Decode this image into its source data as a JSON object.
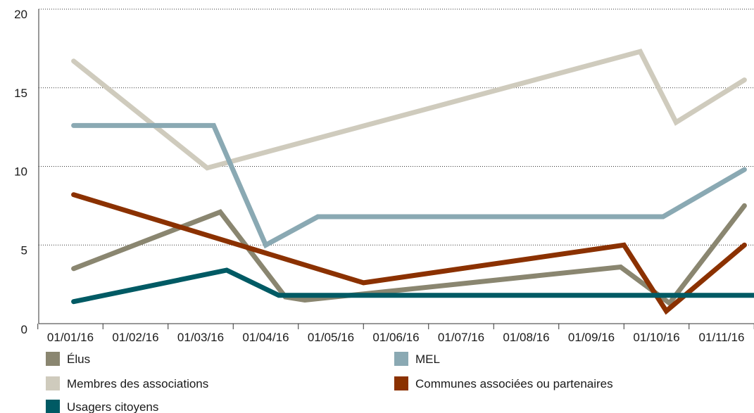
{
  "chart_data": {
    "type": "line",
    "categories": [
      "01/01/16",
      "01/02/16",
      "01/03/16",
      "01/04/16",
      "01/05/16",
      "01/06/16",
      "01/07/16",
      "01/08/16",
      "01/09/16",
      "01/10/16",
      "01/11/16"
    ],
    "yticks": [
      "0",
      "5",
      "10",
      "15",
      "20"
    ],
    "ylim": [
      0,
      20
    ],
    "grid": true,
    "legend_position": "bottom",
    "series": [
      {
        "name": "Élus",
        "color": "#8a8670",
        "points": [
          [
            0.05,
            3.5
          ],
          [
            2.3,
            7.1
          ],
          [
            3.3,
            1.7
          ],
          [
            3.6,
            1.5
          ],
          [
            8.45,
            3.6
          ],
          [
            9.2,
            1.3
          ],
          [
            10.35,
            7.5
          ]
        ]
      },
      {
        "name": "MEL",
        "color": "#8aa9b3",
        "points": [
          [
            0.05,
            12.6
          ],
          [
            2.2,
            12.6
          ],
          [
            3.0,
            5.0
          ],
          [
            3.8,
            6.8
          ],
          [
            9.1,
            6.8
          ],
          [
            10.35,
            9.8
          ]
        ]
      },
      {
        "name": "Membres des associations",
        "color": "#cfcbbd",
        "points": [
          [
            0.05,
            16.7
          ],
          [
            2.1,
            9.9
          ],
          [
            8.75,
            17.3
          ],
          [
            9.3,
            12.8
          ],
          [
            10.35,
            15.5
          ]
        ]
      },
      {
        "name": "Communes associées ou partenaires",
        "color": "#8b3100",
        "points": [
          [
            0.05,
            8.2
          ],
          [
            4.5,
            2.6
          ],
          [
            8.5,
            5.0
          ],
          [
            9.15,
            0.8
          ],
          [
            10.35,
            5.0
          ]
        ]
      },
      {
        "name": "Usagers citoyens",
        "color": "#005a64",
        "points": [
          [
            0.05,
            1.4
          ],
          [
            2.4,
            3.4
          ],
          [
            3.2,
            1.8
          ],
          [
            10.9,
            1.8
          ]
        ]
      }
    ]
  }
}
